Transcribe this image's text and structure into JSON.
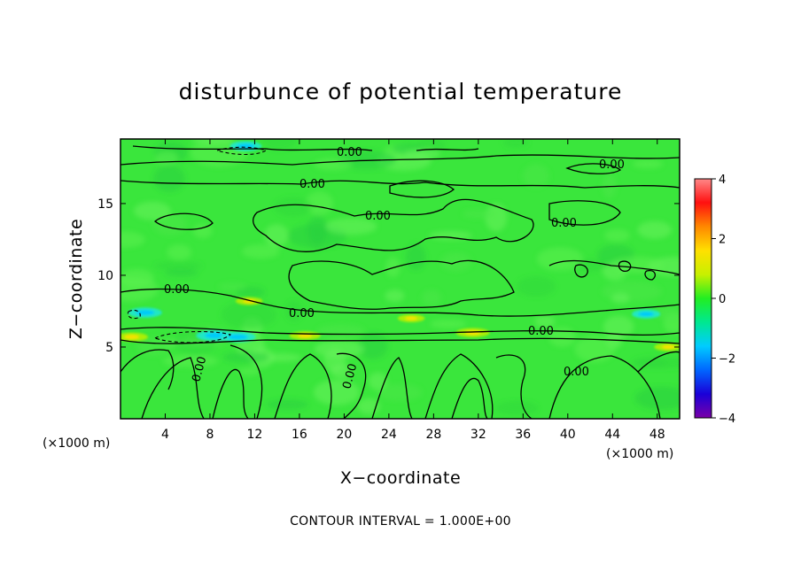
{
  "chart_data": {
    "type": "heatmap",
    "title": "disturbunce of potential temperature",
    "xlabel": "X−coordinate",
    "ylabel": "Z−coordinate",
    "x_unit": "(×1000 m)",
    "y_unit": "(×1000 m)",
    "xlim": [
      0,
      50
    ],
    "ylim": [
      0,
      19.5
    ],
    "x_ticks": [
      4,
      8,
      12,
      16,
      20,
      24,
      28,
      32,
      36,
      40,
      44,
      48
    ],
    "y_ticks": [
      5,
      10,
      15
    ],
    "colorbar": {
      "range": [
        -4,
        4
      ],
      "ticks": [
        "4",
        "2",
        "0",
        "−2",
        "−4"
      ],
      "colors": [
        "#7a00a8",
        "#1a00d8",
        "#0066ff",
        "#00ccff",
        "#00e890",
        "#22ee22",
        "#c8f000",
        "#ffe000",
        "#ff8800",
        "#ff1010",
        "#ff8888"
      ]
    },
    "contour_label": "0.00",
    "contour_interval_text": "CONTOUR INTERVAL = 1.000E+00",
    "features": [
      {
        "kind": "cold",
        "x": 8.5,
        "z": 5.8,
        "value": -1.2
      },
      {
        "kind": "cold",
        "x": 10.5,
        "z": 5.7,
        "value": -1.0
      },
      {
        "kind": "cold",
        "x": 2.2,
        "z": 7.4,
        "value": -0.9
      },
      {
        "kind": "cold",
        "x": 11.2,
        "z": 19.0,
        "value": -0.8
      },
      {
        "kind": "cold",
        "x": 47.0,
        "z": 7.3,
        "value": -0.6
      },
      {
        "kind": "warm",
        "x": 1.0,
        "z": 5.7,
        "value": 1.3
      },
      {
        "kind": "warm",
        "x": 16.5,
        "z": 5.8,
        "value": 1.2
      },
      {
        "kind": "warm",
        "x": 31.5,
        "z": 6.0,
        "value": 1.4
      },
      {
        "kind": "warm",
        "x": 49.0,
        "z": 5.0,
        "value": 1.0
      },
      {
        "kind": "warm",
        "x": 11.5,
        "z": 8.2,
        "value": 0.9
      },
      {
        "kind": "warm",
        "x": 26.0,
        "z": 7.0,
        "value": 0.9
      }
    ]
  }
}
